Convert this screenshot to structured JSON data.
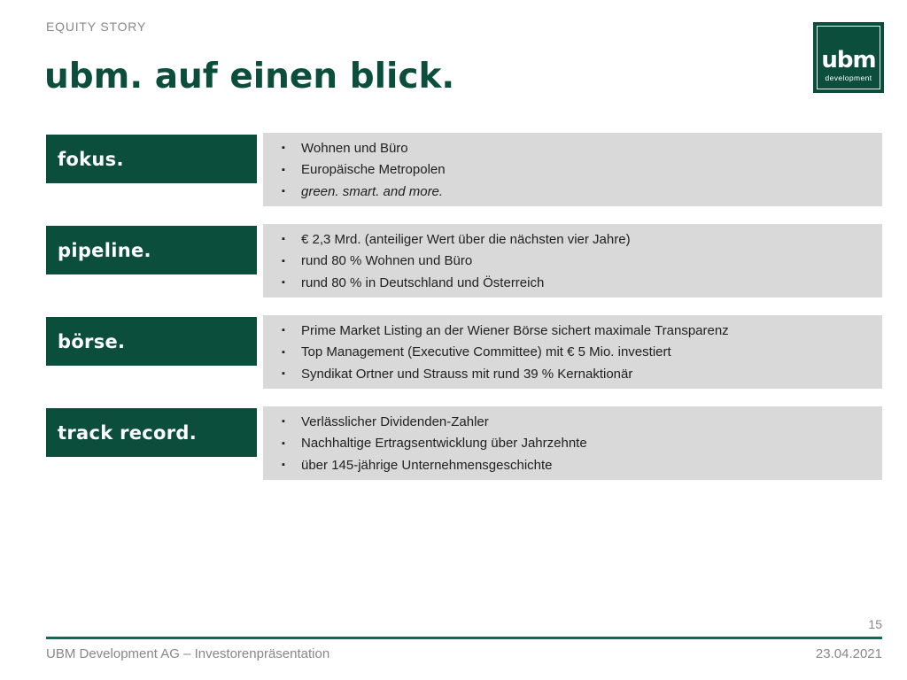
{
  "header": {
    "eyebrow": "EQUITY STORY",
    "title": "ubm. auf einen blick."
  },
  "logo": {
    "wordmark": "ubm",
    "subtitle": "development"
  },
  "icons": {
    "bullet": "▪"
  },
  "colors": {
    "brand_green": "#0B4E3C",
    "panel_gray": "#D9D9D9",
    "rule_green": "#0E6A52",
    "muted_gray": "#878787",
    "text_dark": "#212121"
  },
  "rows": [
    {
      "label": "fokus.",
      "bullets": [
        {
          "text": "Wohnen und Büro",
          "italic": false
        },
        {
          "text": "Europäische Metropolen",
          "italic": false
        },
        {
          "text": "green. smart. and more.",
          "italic": true
        }
      ]
    },
    {
      "label": "pipeline.",
      "bullets": [
        {
          "text": "€ 2,3 Mrd. (anteiliger Wert über die nächsten vier Jahre)",
          "italic": false
        },
        {
          "text": "rund 80 % Wohnen und Büro",
          "italic": false
        },
        {
          "text": "rund 80 % in Deutschland und Österreich",
          "italic": false
        }
      ]
    },
    {
      "label": "börse.",
      "bullets": [
        {
          "text": "Prime Market Listing an der Wiener Börse sichert maximale Transparenz",
          "italic": false
        },
        {
          "text": "Top Management (Executive Committee) mit € 5 Mio. investiert",
          "italic": false
        },
        {
          "text": "Syndikat Ortner und Strauss mit rund 39 % Kernaktionär",
          "italic": false
        }
      ]
    },
    {
      "label": "track record.",
      "bullets": [
        {
          "text": "Verlässlicher Dividenden-Zahler",
          "italic": false
        },
        {
          "text": "Nachhaltige Ertragsentwicklung über Jahrzehnte",
          "italic": false
        },
        {
          "text": "über 145-jährige Unternehmensgeschichte",
          "italic": false
        }
      ]
    }
  ],
  "footer": {
    "page_number": "15",
    "left_text": "UBM Development AG – Investorenpräsentation",
    "date": "23.04.2021"
  }
}
